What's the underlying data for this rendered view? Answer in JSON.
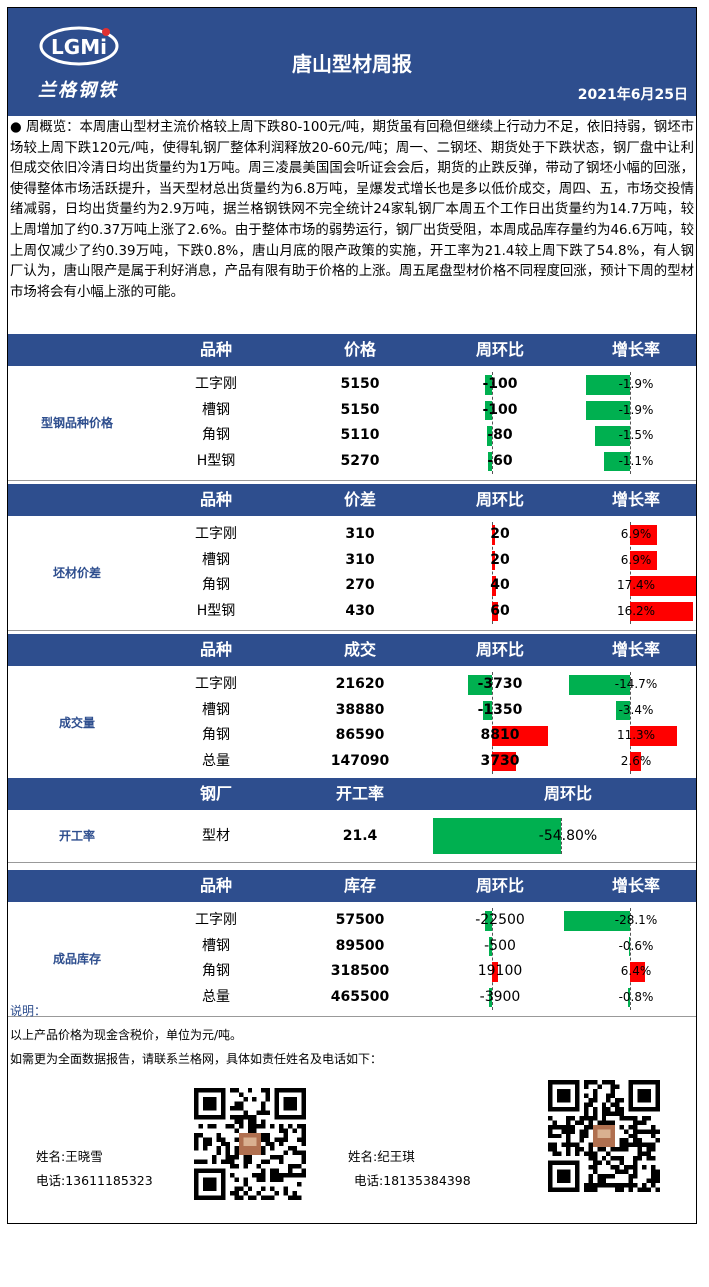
{
  "header": {
    "logo_text": "LGMi",
    "logo_subtitle": "兰格钢铁",
    "title": "唐山型材周报",
    "date": "2021年6月25日"
  },
  "summary": {
    "bullet": "●",
    "label": "周概览：",
    "text": "本周唐山型材主流价格较上周下跌80-100元/吨，期货虽有回稳但继续上行动力不足，依旧持弱，钢坯市场较上周下跌120元/吨，使得轧钢厂整体利润释放20-60元/吨；周一、二钢坯、期货处于下跌状态，钢厂盘中让利但成交依旧冷清日均出货量约为1万吨。周三凌晨美国国会听证会会后，期货的止跌反弹，带动了钢坯小幅的回涨，使得整体市场活跃提升，当天型材总出货量约为6.8万吨，呈爆发式增长也是多以低价成交，周四、五，市场交投情绪减弱，日均出货量约为2.9万吨，据兰格钢铁网不完全统计24家轧钢厂本周五个工作日出货量约为14.7万吨，较上周增加了约0.37万吨上涨了2.6%。由于整体市场的弱势运行，钢厂出货受阻，本周成品库存量约为46.6万吨，较上周仅减少了约0.39万吨，下跌0.8%，唐山月底的限产政策的实施，开工率为21.4较上周下跌了54.8%，有人钢厂认为，唐山限产是属于利好消息，产品有限有助于价格的上涨。周五尾盘型材价格不同程度回涨，预计下周的型材市场将会有小幅上涨的可能。"
  },
  "sections": [
    {
      "id": "price",
      "label": "型钢品种价格",
      "headers": [
        "品种",
        "价格",
        "周环比",
        "增长率"
      ],
      "rows": [
        {
          "name": "工字刚",
          "value": "5150",
          "change": "-100",
          "rate": "-1.9%",
          "change_num": -100,
          "rate_num": -1.9
        },
        {
          "name": "槽钢",
          "value": "5150",
          "change": "-100",
          "rate": "-1.9%",
          "change_num": -100,
          "rate_num": -1.9
        },
        {
          "name": "角钢",
          "value": "5110",
          "change": "-80",
          "rate": "-1.5%",
          "change_num": -80,
          "rate_num": -1.5
        },
        {
          "name": "H型钢",
          "value": "5270",
          "change": "-60",
          "rate": "-1.1%",
          "change_num": -60,
          "rate_num": -1.1
        }
      ]
    },
    {
      "id": "spread",
      "label": "坯材价差",
      "headers": [
        "品种",
        "价差",
        "周环比",
        "增长率"
      ],
      "rows": [
        {
          "name": "工字刚",
          "value": "310",
          "change": "20",
          "rate": "6.9%",
          "change_num": 20,
          "rate_num": 6.9
        },
        {
          "name": "槽钢",
          "value": "310",
          "change": "20",
          "rate": "6.9%",
          "change_num": 20,
          "rate_num": 6.9
        },
        {
          "name": "角钢",
          "value": "270",
          "change": "40",
          "rate": "17.4%",
          "change_num": 40,
          "rate_num": 17.4
        },
        {
          "name": "H型钢",
          "value": "430",
          "change": "60",
          "rate": "16.2%",
          "change_num": 60,
          "rate_num": 16.2
        }
      ]
    },
    {
      "id": "volume",
      "label": "成交量",
      "headers": [
        "品种",
        "成交",
        "周环比",
        "增长率"
      ],
      "rows": [
        {
          "name": "工字刚",
          "value": "21620",
          "change": "-3730",
          "rate": "-14.7%",
          "change_num": -3730,
          "rate_num": -14.7
        },
        {
          "name": "槽钢",
          "value": "38880",
          "change": "-1350",
          "rate": "-3.4%",
          "change_num": -1350,
          "rate_num": -3.4
        },
        {
          "name": "角钢",
          "value": "86590",
          "change": "8810",
          "rate": "11.3%",
          "change_num": 8810,
          "rate_num": 11.3
        },
        {
          "name": "总量",
          "value": "147090",
          "change": "3730",
          "rate": "2.6%",
          "change_num": 3730,
          "rate_num": 2.6
        }
      ]
    },
    {
      "id": "operating",
      "label": "开工率",
      "headers": [
        "钢厂",
        "开工率",
        "周环比"
      ],
      "rows": [
        {
          "name": "型材",
          "value": "21.4",
          "change": "-54.80%",
          "change_num": -54.8
        }
      ]
    },
    {
      "id": "inventory",
      "label": "成品库存",
      "headers": [
        "品种",
        "库存",
        "周环比",
        "增长率"
      ],
      "rows": [
        {
          "name": "工字刚",
          "value": "57500",
          "change": "-22500",
          "rate": "-28.1%",
          "change_num": -22500,
          "rate_num": -28.1
        },
        {
          "name": "槽钢",
          "value": "89500",
          "change": "-500",
          "rate": "-0.6%",
          "change_num": -500,
          "rate_num": -0.6
        },
        {
          "name": "角钢",
          "value": "318500",
          "change": "19100",
          "rate": "6.4%",
          "change_num": 19100,
          "rate_num": 6.4
        },
        {
          "name": "总量",
          "value": "465500",
          "change": "-3900",
          "rate": "-0.8%",
          "change_num": -3900,
          "rate_num": -0.8
        }
      ]
    }
  ],
  "notes": {
    "title": "说明：",
    "line1": "以上产品价格为现金含税价，单位为元/吨。",
    "line2": "如需更为全面数据报告，请联系兰格网，具体如责任姓名及电话如下："
  },
  "contacts": [
    {
      "name": "姓名:王晓雪",
      "phone": "电话:13611185323"
    },
    {
      "name": "姓名:纪王琪",
      "phone": "电话:18135384398"
    }
  ],
  "colors": {
    "header_bg": "#2e4e8e",
    "positive_bar": "#ff0000",
    "negative_bar": "#00b050",
    "section_label": "#2e4e8e"
  }
}
